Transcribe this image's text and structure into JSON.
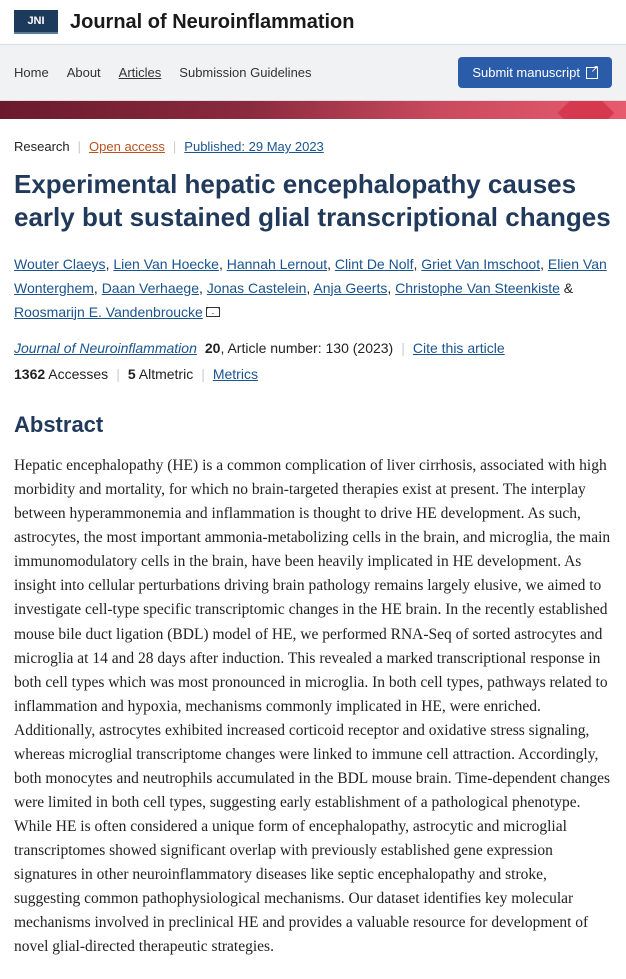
{
  "header": {
    "logo_text": "JNI",
    "journal_title": "Journal of Neuroinflammation"
  },
  "nav": {
    "items": [
      "Home",
      "About",
      "Articles",
      "Submission Guidelines"
    ],
    "active_index": 2,
    "submit_label": "Submit manuscript"
  },
  "meta": {
    "type": "Research",
    "access": "Open access",
    "published": "Published: 29 May 2023"
  },
  "article": {
    "title": "Experimental hepatic encephalopathy causes early but sustained glial transcriptional changes"
  },
  "authors": [
    "Wouter Claeys",
    "Lien Van Hoecke",
    "Hannah Lernout",
    "Clint De Nolf",
    "Griet Van Imschoot",
    "Elien Van Wonterghem",
    "Daan Verhaege",
    "Jonas Castelein",
    "Anja Geerts",
    "Christophe Van Steenkiste",
    "Roosmarijn E. Vandenbroucke"
  ],
  "citation": {
    "journal": "Journal of Neuroinflammation",
    "volume": "20",
    "article_info": ", Article number: 130 (2023)",
    "cite_label": "Cite this article"
  },
  "stats": {
    "accesses_num": "1362",
    "accesses_label": " Accesses",
    "altmetric_num": "5",
    "altmetric_label": " Altmetric",
    "metrics_label": "Metrics"
  },
  "abstract": {
    "heading": "Abstract",
    "text": "Hepatic encephalopathy (HE) is a common complication of liver cirrhosis, associated with high morbidity and mortality, for which no brain-targeted therapies exist at present. The interplay between hyperammonemia and inflammation is thought to drive HE development. As such, astrocytes, the most important ammonia-metabolizing cells in the brain, and microglia, the main immunomodulatory cells in the brain, have been heavily implicated in HE development. As insight into cellular perturbations driving brain pathology remains largely elusive, we aimed to investigate cell-type specific transcriptomic changes in the HE brain. In the recently established mouse bile duct ligation (BDL) model of HE, we performed RNA-Seq of sorted astrocytes and microglia at 14 and 28 days after induction. This revealed a marked transcriptional response in both cell types which was most pronounced in microglia. In both cell types, pathways related to inflammation and hypoxia, mechanisms commonly implicated in HE, were enriched. Additionally, astrocytes exhibited increased corticoid receptor and oxidative stress signaling, whereas microglial transcriptome changes were linked to immune cell attraction. Accordingly, both monocytes and neutrophils accumulated in the BDL mouse brain. Time-dependent changes were limited in both cell types, suggesting early establishment of a pathological phenotype. While HE is often considered a unique form of encephalopathy, astrocytic and microglial transcriptomes showed significant overlap with previously established gene expression signatures in other neuroinflammatory diseases like septic encephalopathy and stroke, suggesting common pathophysiological mechanisms. Our dataset identifies key molecular mechanisms involved in preclinical HE and provides a valuable resource for development of novel glial-directed therapeutic strategies."
  },
  "colors": {
    "primary": "#213a5c",
    "link": "#1a5490",
    "open_access": "#b8521e",
    "nav_bg": "#f0f2f4",
    "submit_bg": "#2a5caa"
  }
}
